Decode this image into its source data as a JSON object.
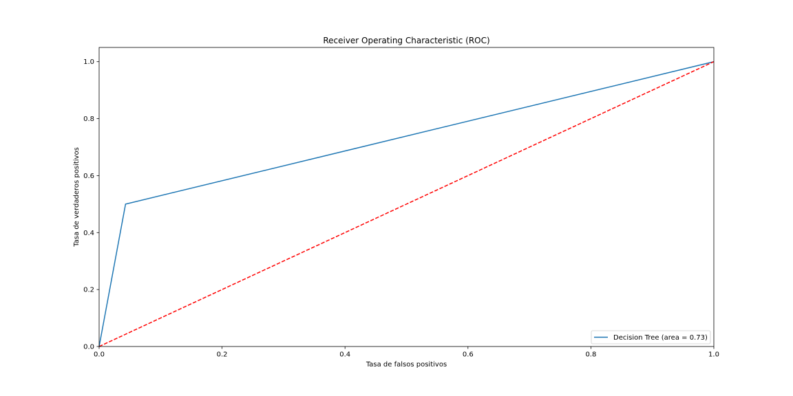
{
  "chart_data": {
    "type": "line",
    "title": "Receiver Operating Characteristic (ROC)",
    "xlabel": "Tasa de falsos positivos",
    "ylabel": "Tasa de verdaderos positivos",
    "xlim": [
      0.0,
      1.0
    ],
    "ylim": [
      0.0,
      1.05
    ],
    "xticks": [
      "0.0",
      "0.2",
      "0.4",
      "0.6",
      "0.8",
      "1.0"
    ],
    "yticks": [
      "0.0",
      "0.2",
      "0.4",
      "0.6",
      "0.8",
      "1.0"
    ],
    "grid": false,
    "legend_position": "lower-right",
    "series": [
      {
        "name": "Decision Tree (area = 0.73)",
        "color": "#1f77b4",
        "style": "solid",
        "x": [
          0.0,
          0.043,
          1.0
        ],
        "y": [
          0.0,
          0.5,
          1.0
        ]
      },
      {
        "color": "#ff0000",
        "style": "dashed",
        "x": [
          0.0,
          1.0
        ],
        "y": [
          0.0,
          1.0
        ]
      }
    ]
  }
}
